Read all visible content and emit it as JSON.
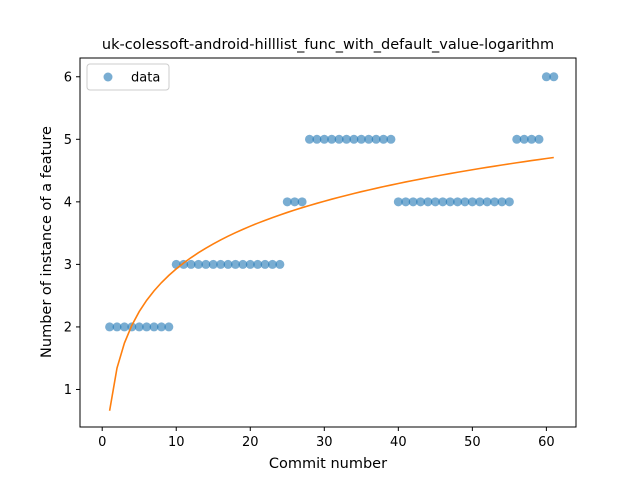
{
  "chart_data": {
    "type": "scatter",
    "title": "uk-colessoft-android-hilllist_func_with_default_value-logarithm",
    "xlabel": "Commit number",
    "ylabel": "Number of instance of a feature",
    "xlim": [
      -3,
      64
    ],
    "ylim": [
      0.4,
      6.3
    ],
    "xticks": [
      0,
      10,
      20,
      30,
      40,
      50,
      60
    ],
    "yticks": [
      1,
      2,
      3,
      4,
      5,
      6
    ],
    "grid": false,
    "legend": {
      "placement": "upper-left",
      "entries": [
        "data"
      ]
    },
    "series": [
      {
        "name": "data",
        "kind": "scatter",
        "color": "#1f77b4",
        "x": [
          1,
          2,
          3,
          4,
          5,
          6,
          7,
          8,
          9,
          10,
          11,
          12,
          13,
          14,
          15,
          16,
          17,
          18,
          19,
          20,
          21,
          22,
          23,
          24,
          25,
          26,
          27,
          28,
          29,
          30,
          31,
          32,
          33,
          34,
          35,
          36,
          37,
          38,
          39,
          40,
          41,
          42,
          43,
          44,
          45,
          46,
          47,
          48,
          49,
          50,
          51,
          52,
          53,
          54,
          55,
          56,
          57,
          58,
          59,
          60,
          61
        ],
        "y": [
          2,
          2,
          2,
          2,
          2,
          2,
          2,
          2,
          2,
          3,
          3,
          3,
          3,
          3,
          3,
          3,
          3,
          3,
          3,
          3,
          3,
          3,
          3,
          3,
          4,
          4,
          4,
          5,
          5,
          5,
          5,
          5,
          5,
          5,
          5,
          5,
          5,
          5,
          5,
          4,
          4,
          4,
          4,
          4,
          4,
          4,
          4,
          4,
          4,
          4,
          4,
          4,
          4,
          4,
          4,
          5,
          5,
          5,
          5,
          6,
          6
        ]
      },
      {
        "kind": "line",
        "color": "#ff7f0e",
        "fit": {
          "a": 0.66,
          "b": 0.985
        },
        "x": [
          1,
          2,
          3,
          4,
          5,
          6,
          7,
          8,
          9,
          10,
          11,
          12,
          13,
          14,
          15,
          16,
          17,
          18,
          19,
          20,
          21,
          22,
          23,
          24,
          25,
          26,
          27,
          28,
          29,
          30,
          31,
          32,
          33,
          34,
          35,
          36,
          37,
          38,
          39,
          40,
          41,
          42,
          43,
          44,
          45,
          46,
          47,
          48,
          49,
          50,
          51,
          52,
          53,
          54,
          55,
          56,
          57,
          58,
          59,
          60,
          61
        ]
      }
    ]
  }
}
